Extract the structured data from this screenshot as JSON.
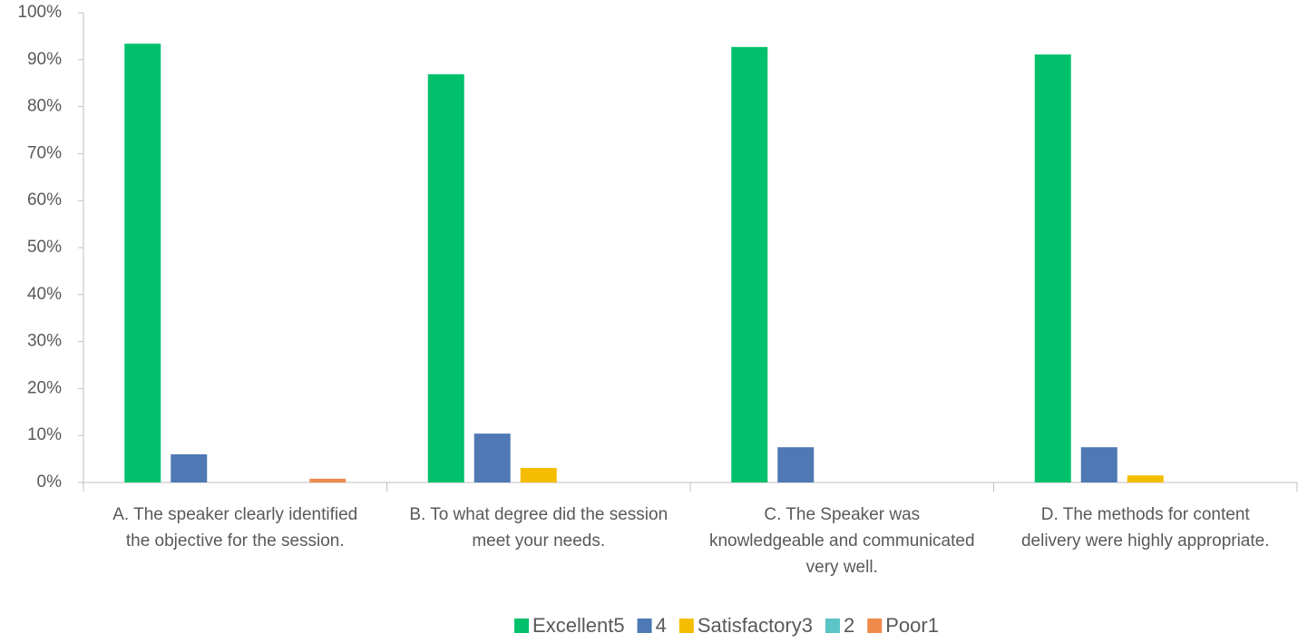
{
  "chart_data": {
    "type": "bar",
    "categories": [
      "A. The speaker clearly identified the objective for the session.",
      "B. To what degree did the session meet your needs.",
      "C. The Speaker was knowledgeable and communicated very well.",
      "D. The methods for content delivery were highly appropriate."
    ],
    "series": [
      {
        "name": "Excellent5",
        "color": "#00c06b",
        "values": [
          93.4,
          86.9,
          92.7,
          91.1
        ]
      },
      {
        "name": "4",
        "color": "#4e79b4",
        "values": [
          6,
          10.4,
          7.5,
          7.5
        ]
      },
      {
        "name": "Satisfactory3",
        "color": "#f5bd00",
        "values": [
          0,
          3.1,
          0,
          1.5
        ]
      },
      {
        "name": "2",
        "color": "#5bc4c6",
        "values": [
          0,
          0,
          0,
          0
        ]
      },
      {
        "name": "Poor1",
        "color": "#f08a4b",
        "values": [
          0.8,
          0,
          0,
          0
        ]
      }
    ],
    "ylim": [
      0,
      100
    ],
    "yticks": [
      {
        "value": 0,
        "label": "0%"
      },
      {
        "value": 10,
        "label": "10%"
      },
      {
        "value": 20,
        "label": "20%"
      },
      {
        "value": 30,
        "label": "30%"
      },
      {
        "value": 40,
        "label": "40%"
      },
      {
        "value": 50,
        "label": "50%"
      },
      {
        "value": 60,
        "label": "60%"
      },
      {
        "value": 70,
        "label": "70%"
      },
      {
        "value": 80,
        "label": "80%"
      },
      {
        "value": 90,
        "label": "90%"
      },
      {
        "value": 100,
        "label": "100%"
      }
    ],
    "legend": "bottom"
  }
}
